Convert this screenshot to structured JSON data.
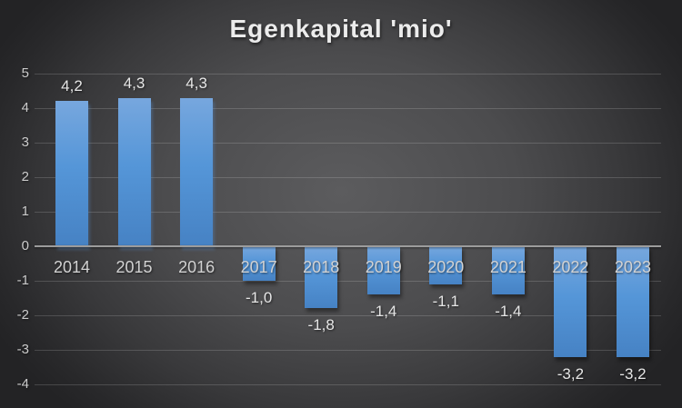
{
  "title": "Egenkapital 'mio'",
  "colors": {
    "background_center": "#5c5c5e",
    "background_edge": "#232325",
    "bar_gradient_top": "#77a7de",
    "bar_gradient_mid": "#5596d8",
    "bar_gradient_bottom": "#4682c4",
    "gridline": "rgba(255,255,255,0.16)",
    "zero_line": "#9c9c9c",
    "title_text": "#ececec",
    "label_text": "#d2d2d2"
  },
  "chart_data": {
    "type": "bar",
    "title": "Egenkapital 'mio'",
    "xlabel": "",
    "ylabel": "",
    "categories": [
      "2014",
      "2015",
      "2016",
      "2017",
      "2018",
      "2019",
      "2020",
      "2021",
      "2022",
      "2023"
    ],
    "values": [
      4.2,
      4.3,
      4.3,
      -1.0,
      -1.8,
      -1.4,
      -1.1,
      -1.4,
      -3.2,
      -3.2
    ],
    "value_labels": [
      "4,2",
      "4,3",
      "4,3",
      "-1,0",
      "-1,8",
      "-1,4",
      "-1,1",
      "-1,4",
      "-3,2",
      "-3,2"
    ],
    "ylim": [
      -4,
      5
    ],
    "ytick_labels": [
      "5",
      "4",
      "3",
      "2",
      "1",
      "0",
      "-1",
      "-2",
      "-3",
      "-4"
    ],
    "grid": true,
    "legend_position": "none"
  }
}
